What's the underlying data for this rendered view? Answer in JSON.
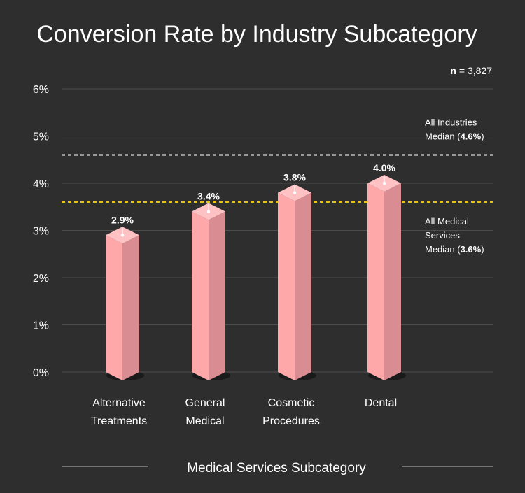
{
  "chart_data": {
    "type": "bar",
    "title": "Conversion Rate by Industry Subcategory",
    "xlabel": "Medical Services Subcategory",
    "ylabel": "",
    "sample": {
      "label": "n",
      "value": "3,827"
    },
    "categories": [
      [
        "Alternative",
        "Treatments"
      ],
      [
        "General",
        "Medical"
      ],
      [
        "Cosmetic",
        "Procedures"
      ],
      [
        "Dental"
      ]
    ],
    "values": [
      2.9,
      3.4,
      3.8,
      4.0
    ],
    "value_labels": [
      "2.9%",
      "3.4%",
      "3.8%",
      "4.0%"
    ],
    "ylim": [
      0,
      6
    ],
    "yticks": [
      0,
      1,
      2,
      3,
      4,
      5,
      6
    ],
    "ytick_labels": [
      "0%",
      "1%",
      "2%",
      "3%",
      "4%",
      "5%",
      "6%"
    ],
    "grid": true,
    "reference_lines": [
      {
        "value": 4.6,
        "color": "#ffffff",
        "label_lines": [
          [
            "All Industries"
          ],
          [
            "Median (",
            "4.6%",
            ")"
          ]
        ]
      },
      {
        "value": 3.6,
        "color": "#e8c21a",
        "label_lines": [
          [
            "All Medical"
          ],
          [
            "Services"
          ],
          [
            "Median (",
            "3.6%",
            ")"
          ]
        ]
      }
    ],
    "colors": {
      "background": "#2e2e2e",
      "bar_front": "#ffa8aa",
      "bar_side": "#d98c91",
      "bar_top": "#ffc2c4",
      "grid": "#4d4d4d",
      "axis_rule": "#8a8a8a"
    }
  }
}
